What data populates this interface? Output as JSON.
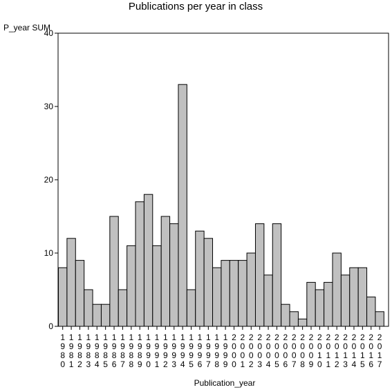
{
  "chart_data": {
    "type": "bar",
    "title": "Publications per year in class",
    "xlabel": "Publication_year",
    "ylabel": "P_year SUM",
    "ylim": [
      0,
      40
    ],
    "yticks": [
      0,
      10,
      20,
      30,
      40
    ],
    "grid": false,
    "categories": [
      "1980",
      "1981",
      "1982",
      "1983",
      "1984",
      "1985",
      "1986",
      "1987",
      "1988",
      "1989",
      "1990",
      "1991",
      "1992",
      "1993",
      "1994",
      "1995",
      "1996",
      "1997",
      "1998",
      "1999",
      "2000",
      "2001",
      "2002",
      "2003",
      "2004",
      "2005",
      "2006",
      "2007",
      "2008",
      "2009",
      "2010",
      "2011",
      "2012",
      "2013",
      "2014",
      "2015",
      "2016",
      "2017"
    ],
    "values": [
      8,
      12,
      9,
      5,
      3,
      3,
      15,
      5,
      11,
      17,
      18,
      11,
      15,
      14,
      33,
      5,
      13,
      12,
      8,
      9,
      9,
      9,
      10,
      14,
      7,
      14,
      3,
      2,
      1,
      6,
      5,
      6,
      10,
      7,
      8,
      8,
      4,
      2
    ],
    "bar_color": "#c0c0c0"
  }
}
